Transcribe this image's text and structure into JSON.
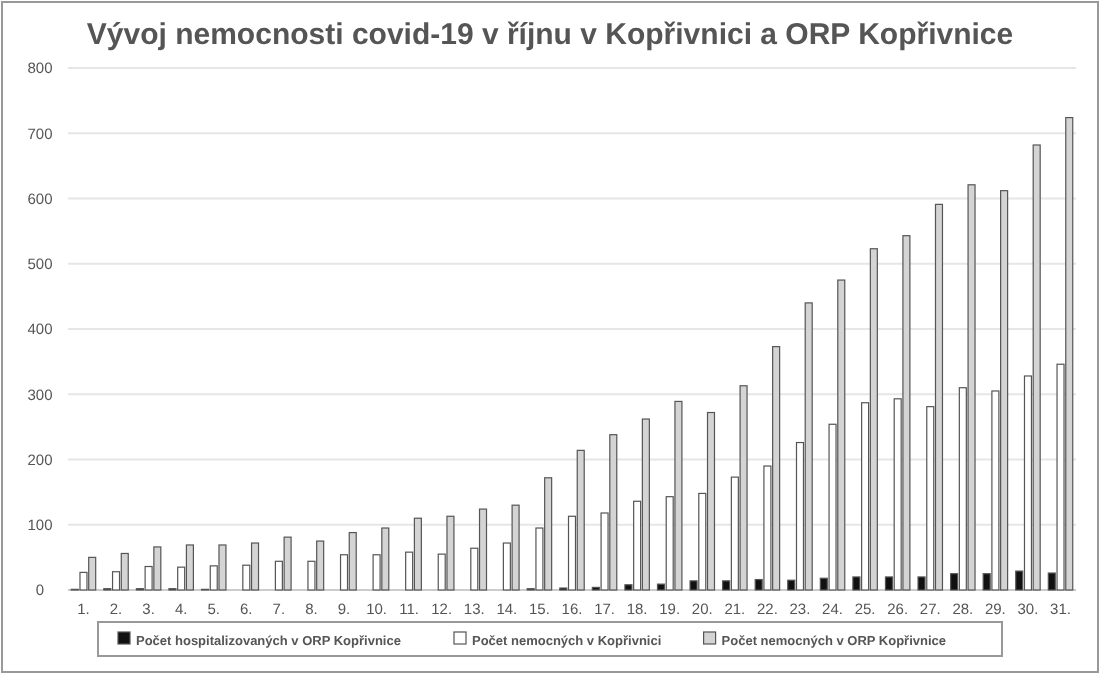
{
  "chart_data": {
    "type": "bar",
    "title": "Vývoj nemocnosti covid-19 v říjnu v Kopřivnici a ORP Kopřivnice",
    "categories": [
      "1.",
      "2.",
      "3.",
      "4.",
      "5.",
      "6.",
      "7.",
      "8.",
      "9.",
      "10.",
      "11.",
      "12.",
      "13.",
      "14.",
      "15.",
      "16.",
      "17.",
      "18.",
      "19.",
      "20.",
      "21.",
      "22.",
      "23.",
      "24.",
      "25.",
      "26.",
      "27.",
      "28.",
      "29.",
      "30.",
      "31."
    ],
    "series": [
      {
        "name": "Počet hospitalizovaných v ORP Kopřivnice",
        "color": "#111111",
        "values": [
          1,
          2,
          2,
          2,
          1,
          0,
          0,
          0,
          0,
          0,
          0,
          0,
          0,
          0,
          2,
          3,
          4,
          8,
          9,
          14,
          14,
          16,
          15,
          18,
          20,
          20,
          20,
          25,
          25,
          29,
          26
        ]
      },
      {
        "name": "Počet nemocných v Kopřivnici",
        "color": "#ffffff",
        "values": [
          27,
          28,
          36,
          35,
          37,
          38,
          44,
          44,
          54,
          54,
          58,
          55,
          64,
          72,
          95,
          113,
          118,
          136,
          143,
          148,
          173,
          190,
          226,
          254,
          287,
          293,
          281,
          310,
          305,
          328,
          346
        ]
      },
      {
        "name": "Počet nemocných v ORP Kopřivnice",
        "color": "#d4d4d4",
        "values": [
          50,
          56,
          66,
          69,
          69,
          72,
          81,
          75,
          88,
          95,
          110,
          113,
          124,
          130,
          172,
          214,
          238,
          262,
          289,
          272,
          313,
          373,
          440,
          475,
          523,
          543,
          591,
          621,
          612,
          682,
          724
        ]
      }
    ],
    "ylim": [
      0,
      800
    ],
    "yticks": [
      0,
      100,
      200,
      300,
      400,
      500,
      600,
      700,
      800
    ],
    "grid": "y",
    "legend": "bottom"
  }
}
